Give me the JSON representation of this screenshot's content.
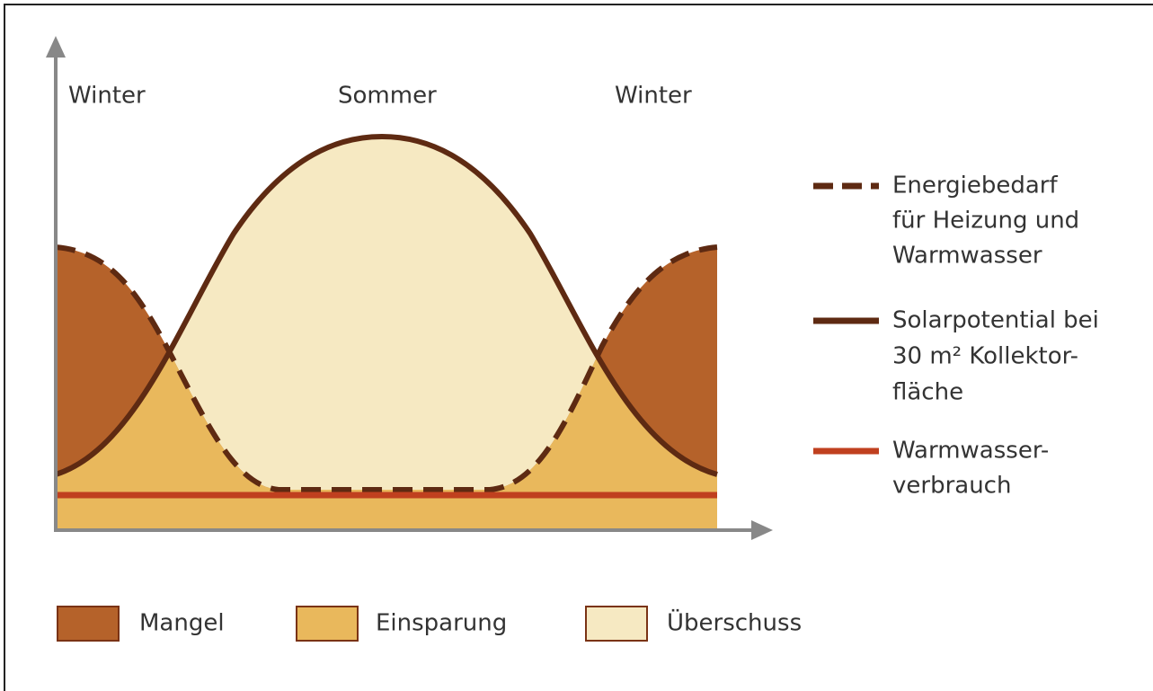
{
  "season_labels": [
    "Winter",
    "Sommer",
    "Winter"
  ],
  "line_legend": [
    {
      "lines": [
        "Energiebedarf",
        "für Heizung und",
        "Warmwasser"
      ]
    },
    {
      "lines": [
        "Solarpotential bei",
        "30 m² Kollektor-",
        "fläche"
      ]
    },
    {
      "lines": [
        "Warmwasser-",
        "verbrauch"
      ]
    }
  ],
  "area_legend": [
    "Mangel",
    "Einsparung",
    "Überschuss"
  ]
}
